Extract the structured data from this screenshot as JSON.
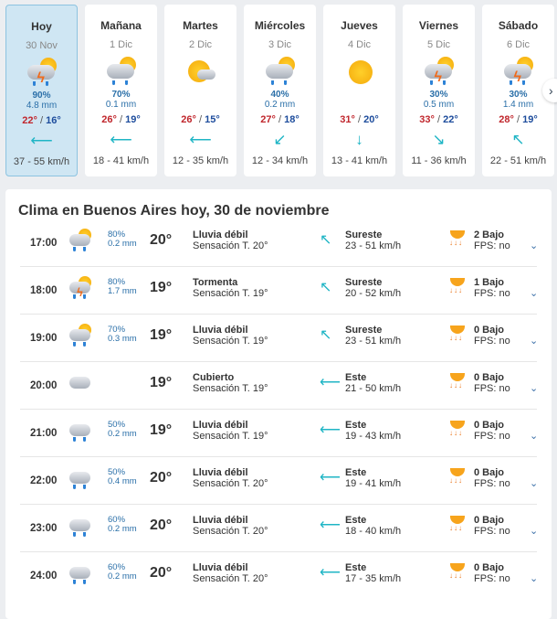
{
  "days": [
    {
      "name": "Hoy",
      "date": "30 Nov",
      "icon": "storm",
      "prob": "90%",
      "mm": "4.8 mm",
      "hi": "22°",
      "lo": "16°",
      "wind_icon": "wind-east-icon",
      "wind_glyph": "⟵",
      "speed": "37 - 55 km/h",
      "selected": true
    },
    {
      "name": "Mañana",
      "date": "1 Dic",
      "icon": "rain",
      "prob": "70%",
      "mm": "0.1 mm",
      "hi": "26°",
      "lo": "19°",
      "wind_icon": "wind-east-icon",
      "wind_glyph": "⟵",
      "speed": "18 - 41 km/h"
    },
    {
      "name": "Martes",
      "date": "2 Dic",
      "icon": "partly",
      "prob": "",
      "mm": "",
      "hi": "26°",
      "lo": "15°",
      "wind_icon": "wind-east-icon",
      "wind_glyph": "⟵",
      "speed": "12 - 35 km/h"
    },
    {
      "name": "Miércoles",
      "date": "3 Dic",
      "icon": "rain",
      "prob": "40%",
      "mm": "0.2 mm",
      "hi": "27°",
      "lo": "18°",
      "wind_icon": "wind-northeast-icon",
      "wind_glyph": "↙",
      "speed": "12 - 34 km/h"
    },
    {
      "name": "Jueves",
      "date": "4 Dic",
      "icon": "sun",
      "prob": "",
      "mm": "",
      "hi": "31°",
      "lo": "20°",
      "wind_icon": "wind-north-icon",
      "wind_glyph": "↓",
      "speed": "13 - 41 km/h"
    },
    {
      "name": "Viernes",
      "date": "5 Dic",
      "icon": "storm",
      "prob": "30%",
      "mm": "0.5 mm",
      "hi": "33°",
      "lo": "22°",
      "wind_icon": "wind-northwest-icon",
      "wind_glyph": "↘",
      "speed": "11 - 36 km/h"
    },
    {
      "name": "Sábado",
      "date": "6 Dic",
      "icon": "storm",
      "prob": "30%",
      "mm": "1.4 mm",
      "hi": "28°",
      "lo": "19°",
      "wind_icon": "wind-southeast-icon",
      "wind_glyph": "↖",
      "speed": "22 - 51 km/h"
    }
  ],
  "next_glyph": "›",
  "title": "Clima en Buenos Aires hoy, 30 de noviembre",
  "hours": [
    {
      "time": "17:00",
      "icon": "rain",
      "prob": "80%",
      "mm": "0.2 mm",
      "temp": "20°",
      "desc": "Lluvia débil",
      "feel": "Sensación T. 20°",
      "wind_glyph": "↖",
      "dir": "Sureste",
      "speed": "23 - 51 km/h",
      "uv": "2 Bajo",
      "fps": "FPS: no"
    },
    {
      "time": "18:00",
      "icon": "storm",
      "prob": "80%",
      "mm": "1.7 mm",
      "temp": "19°",
      "desc": "Tormenta",
      "feel": "Sensación T. 19°",
      "wind_glyph": "↖",
      "dir": "Sureste",
      "speed": "20 - 52 km/h",
      "uv": "1 Bajo",
      "fps": "FPS: no"
    },
    {
      "time": "19:00",
      "icon": "rain",
      "prob": "70%",
      "mm": "0.3 mm",
      "temp": "19°",
      "desc": "Lluvia débil",
      "feel": "Sensación T. 19°",
      "wind_glyph": "↖",
      "dir": "Sureste",
      "speed": "23 - 51 km/h",
      "uv": "0 Bajo",
      "fps": "FPS: no"
    },
    {
      "time": "20:00",
      "icon": "cloud",
      "prob": "",
      "mm": "",
      "temp": "19°",
      "desc": "Cubierto",
      "feel": "Sensación T. 19°",
      "wind_glyph": "⟵",
      "dir": "Este",
      "speed": "21 - 50 km/h",
      "uv": "0 Bajo",
      "fps": "FPS: no"
    },
    {
      "time": "21:00",
      "icon": "cloudrain",
      "prob": "50%",
      "mm": "0.2 mm",
      "temp": "19°",
      "desc": "Lluvia débil",
      "feel": "Sensación T. 19°",
      "wind_glyph": "⟵",
      "dir": "Este",
      "speed": "19 - 43 km/h",
      "uv": "0 Bajo",
      "fps": "FPS: no"
    },
    {
      "time": "22:00",
      "icon": "cloudrain",
      "prob": "50%",
      "mm": "0.4 mm",
      "temp": "20°",
      "desc": "Lluvia débil",
      "feel": "Sensación T. 20°",
      "wind_glyph": "⟵",
      "dir": "Este",
      "speed": "19 - 41 km/h",
      "uv": "0 Bajo",
      "fps": "FPS: no"
    },
    {
      "time": "23:00",
      "icon": "cloudrain",
      "prob": "60%",
      "mm": "0.2 mm",
      "temp": "20°",
      "desc": "Lluvia débil",
      "feel": "Sensación T. 20°",
      "wind_glyph": "⟵",
      "dir": "Este",
      "speed": "18 - 40 km/h",
      "uv": "0 Bajo",
      "fps": "FPS: no"
    },
    {
      "time": "24:00",
      "icon": "cloudrain",
      "prob": "60%",
      "mm": "0.2 mm",
      "temp": "20°",
      "desc": "Lluvia débil",
      "feel": "Sensación T. 20°",
      "wind_glyph": "⟵",
      "dir": "Este",
      "speed": "17 - 35 km/h",
      "uv": "0 Bajo",
      "fps": "FPS: no"
    }
  ],
  "chevron_glyph": "⌄",
  "colors": {
    "max_temp": "#c0262c",
    "min_temp": "#1d4c9c",
    "wind": "#1fb5c5",
    "selected_day": "#cfe6f3"
  }
}
